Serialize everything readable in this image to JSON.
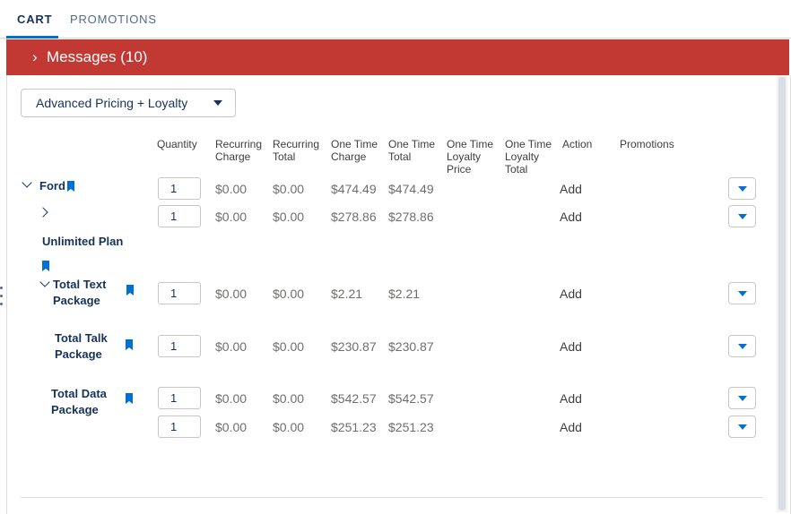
{
  "tabs": [
    {
      "label": "CART",
      "active": true
    },
    {
      "label": "PROMOTIONS",
      "active": false
    }
  ],
  "messages": {
    "label": "Messages (10)",
    "icon": "chevron-right-icon",
    "color": "#c23934"
  },
  "pricing_select": {
    "value": "Advanced Pricing + Loyalty",
    "icon": "caret-down-icon"
  },
  "columns": {
    "quantity": "Quantity",
    "recurring_charge": "Recurring Charge",
    "recurring_total": "Recurring Total",
    "one_time_charge": "One Time Charge",
    "one_time_total": "One Time Total",
    "one_time_loyalty_price": "One Time Loyalty Price",
    "one_time_loyalty_total": "One Time Loyalty Total",
    "action": "Action",
    "promotions": "Promotions"
  },
  "tree": {
    "ford": "Ford",
    "unlimited_plan": "Unlimited Plan",
    "total_text_package": "Total Text Package",
    "total_talk_package": "Total Talk Package",
    "total_data_package": "Total Data Package"
  },
  "rows": [
    {
      "qty": "1",
      "recurring_charge": "$0.00",
      "recurring_total": "$0.00",
      "one_time_charge": "$474.49",
      "one_time_total": "$474.49",
      "action": "Add"
    },
    {
      "qty": "1",
      "recurring_charge": "$0.00",
      "recurring_total": "$0.00",
      "one_time_charge": "$278.86",
      "one_time_total": "$278.86",
      "action": "Add"
    },
    {
      "qty": "1",
      "recurring_charge": "$0.00",
      "recurring_total": "$0.00",
      "one_time_charge": "$2.21",
      "one_time_total": "$2.21",
      "action": "Add"
    },
    {
      "qty": "1",
      "recurring_charge": "$0.00",
      "recurring_total": "$0.00",
      "one_time_charge": "$230.87",
      "one_time_total": "$230.87",
      "action": "Add"
    },
    {
      "qty": "1",
      "recurring_charge": "$0.00",
      "recurring_total": "$0.00",
      "one_time_charge": "$542.57",
      "one_time_total": "$542.57",
      "action": "Add"
    },
    {
      "qty": "1",
      "recurring_charge": "$0.00",
      "recurring_total": "$0.00",
      "one_time_charge": "$251.23",
      "one_time_total": "$251.23",
      "action": "Add"
    }
  ],
  "colors": {
    "accent": "#0070d2",
    "text": "#16325c",
    "muted": "#706e6b"
  }
}
